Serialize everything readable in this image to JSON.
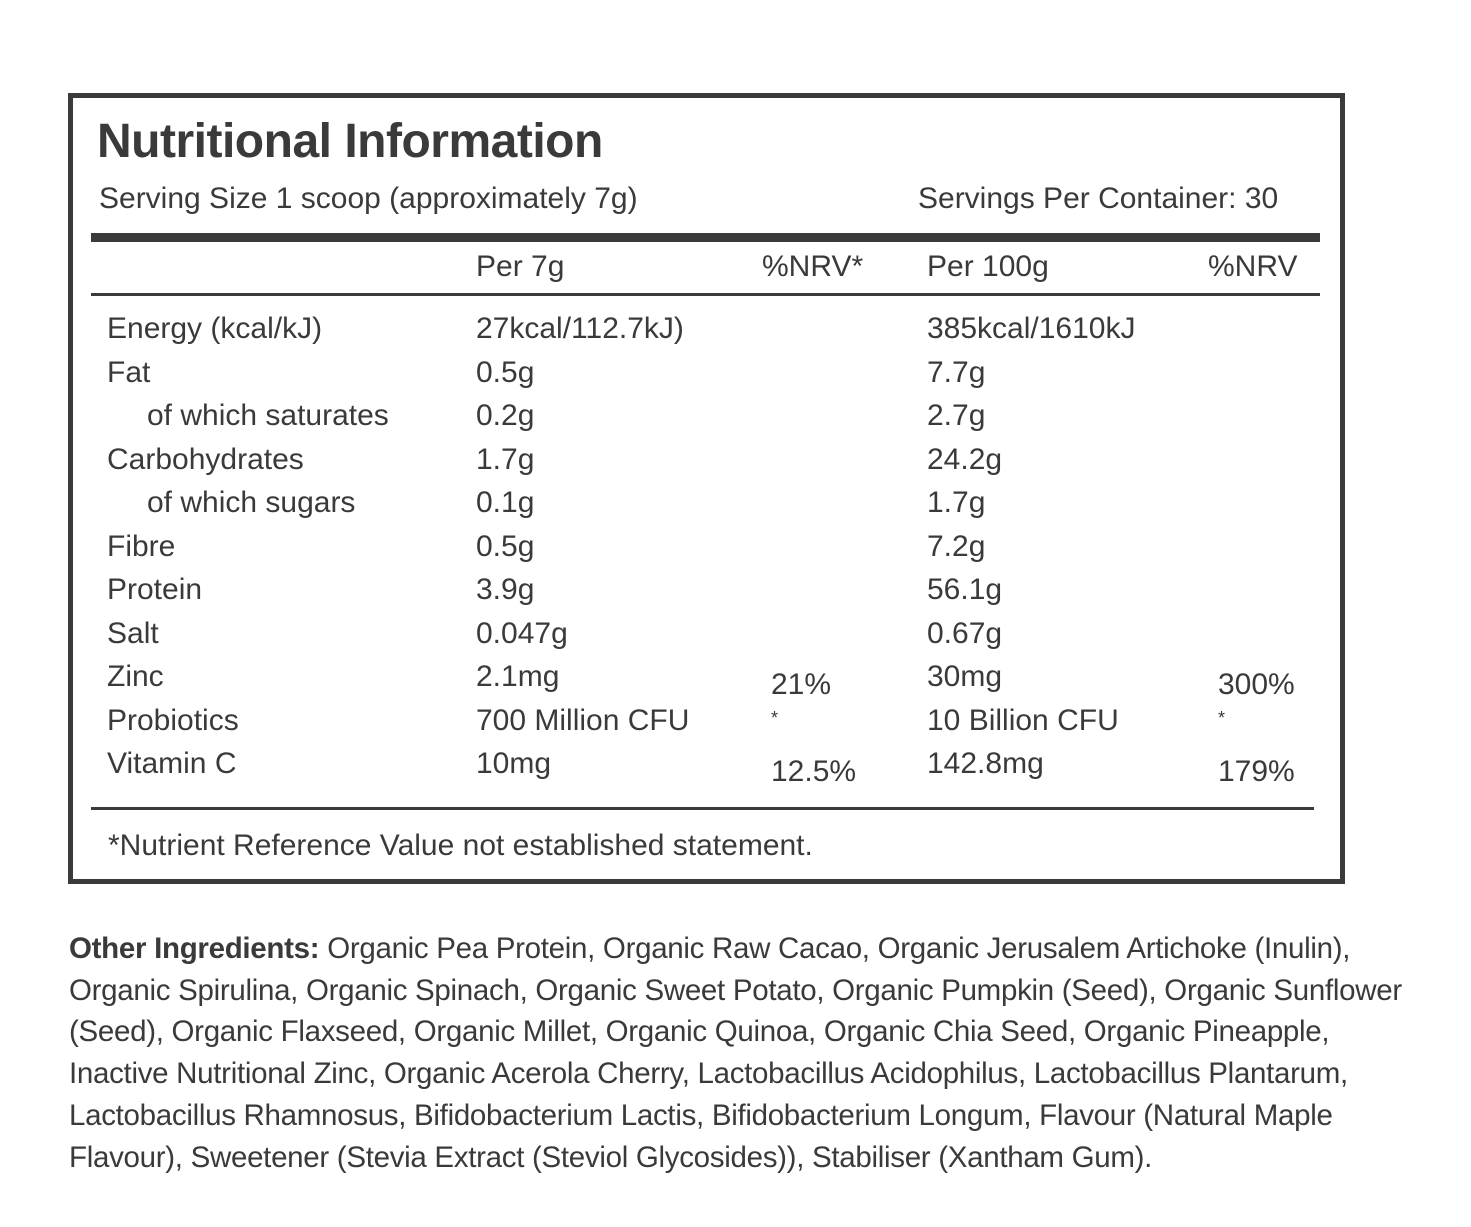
{
  "panel": {
    "title": "Nutritional Information",
    "serving_size": "Serving Size 1 scoop (approximately 7g)",
    "servings_per_container": "Servings Per Container: 30",
    "columns": {
      "per_serving": "Per 7g",
      "nrv_serving": "%NRV*",
      "per_100g": "Per 100g",
      "nrv_100g": "%NRV"
    },
    "rows": [
      {
        "name": "Energy (kcal/kJ)",
        "indent": false,
        "per_serving": "27kcal/112.7kJ)",
        "nrv_serving": "",
        "per_100g": "385kcal/1610kJ",
        "nrv_100g": ""
      },
      {
        "name": "Fat",
        "indent": false,
        "per_serving": "0.5g",
        "nrv_serving": "",
        "per_100g": "7.7g",
        "nrv_100g": ""
      },
      {
        "name": "of which saturates",
        "indent": true,
        "per_serving": "0.2g",
        "nrv_serving": "",
        "per_100g": "2.7g",
        "nrv_100g": ""
      },
      {
        "name": "Carbohydrates",
        "indent": false,
        "per_serving": "1.7g",
        "nrv_serving": "",
        "per_100g": "24.2g",
        "nrv_100g": ""
      },
      {
        "name": "of which sugars",
        "indent": true,
        "per_serving": "0.1g",
        "nrv_serving": "",
        "per_100g": "1.7g",
        "nrv_100g": ""
      },
      {
        "name": "Fibre",
        "indent": false,
        "per_serving": "0.5g",
        "nrv_serving": "",
        "per_100g": "7.2g",
        "nrv_100g": ""
      },
      {
        "name": "Protein",
        "indent": false,
        "per_serving": "3.9g",
        "nrv_serving": "",
        "per_100g": "56.1g",
        "nrv_100g": ""
      },
      {
        "name": "Salt",
        "indent": false,
        "per_serving": "0.047g",
        "nrv_serving": "",
        "per_100g": "0.67g",
        "nrv_100g": ""
      },
      {
        "name": "Zinc",
        "indent": false,
        "per_serving": "2.1mg",
        "nrv_serving": "21%",
        "per_100g": "30mg",
        "nrv_100g": "300%"
      },
      {
        "name": "Probiotics",
        "indent": false,
        "per_serving": "700 Million CFU",
        "nrv_serving": "*",
        "per_100g": "10 Billion CFU",
        "nrv_100g": "*"
      },
      {
        "name": "Vitamin C",
        "indent": false,
        "per_serving": "10mg",
        "nrv_serving": "12.5%",
        "per_100g": "142.8mg",
        "nrv_100g": "179%"
      }
    ],
    "footnote": "*Nutrient Reference Value not established statement."
  },
  "ingredients": {
    "label": "Other Ingredients:",
    "text": " Organic Pea Protein, Organic Raw Cacao, Organic Jerusalem Artichoke (Inulin), Organic Spirulina, Organic Spinach, Organic Sweet Potato, Organic Pumpkin (Seed), Organic Sunflower (Seed), Organic Flaxseed, Organic Millet, Organic Quinoa, Organic Chia Seed, Organic Pineapple, Inactive Nutritional Zinc, Organic Acerola Cherry, Lactobacillus Acidophilus, Lactobacillus Plantarum, Lactobacillus Rhamnosus, Bifidobacterium Lactis, Bifidobacterium Longum, Flavour (Natural Maple Flavour), Sweetener (Stevia Extract (Steviol Glycosides)),  Stabiliser (Xantham Gum)."
  },
  "colors": {
    "ink": "#3a3a3a",
    "background": "#ffffff"
  }
}
